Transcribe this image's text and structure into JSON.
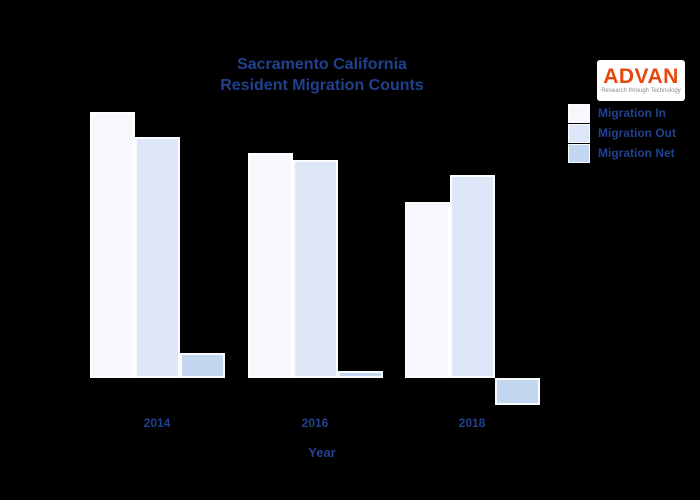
{
  "header": {
    "title_line1": "Sacramento California",
    "title_line2": "Resident Migration  Counts"
  },
  "branding": {
    "logo_text": "ADVAN",
    "tagline": "Research through Technology",
    "logo_accent_color": "#e8470a"
  },
  "colors": {
    "background": "#000000",
    "text": "#21418e",
    "bar_edge": "#ffffff"
  },
  "chart_data": {
    "type": "bar",
    "title": "Sacramento California Resident Migration Counts",
    "categories": [
      "2014",
      "2016",
      "2018"
    ],
    "series": [
      {
        "name": "Migration In",
        "color": "#f7f8fd",
        "values": [
          266,
          225,
          176
        ]
      },
      {
        "name": "Migration Out",
        "color": "#dde7f8",
        "values": [
          241,
          218,
          203
        ]
      },
      {
        "name": "Migration Net",
        "color": "#c3d7f1",
        "values": [
          25,
          7,
          -27
        ]
      }
    ],
    "xlabel": "Year",
    "ylabel": "",
    "ylim": [
      -40,
      290
    ],
    "value_units": "relative units (y-axis unlabeled)",
    "grid": false,
    "legend_position": "upper right",
    "background": "#000000",
    "note": "Net = In minus Out; 2018 net is negative (bar extends below baseline)"
  }
}
